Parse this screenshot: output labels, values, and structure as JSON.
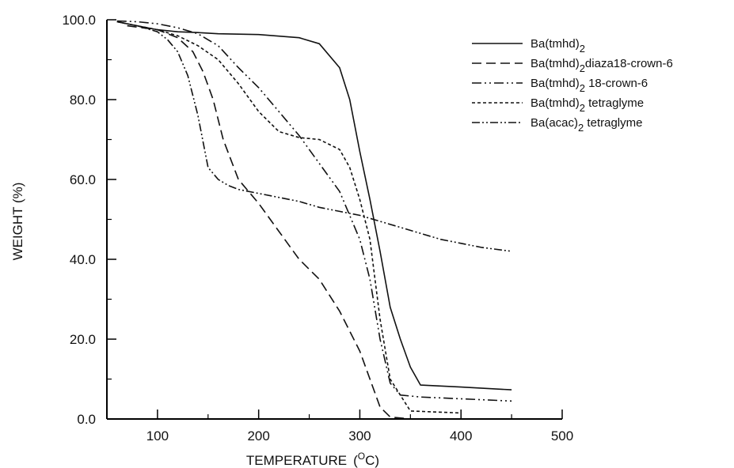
{
  "chart_data": {
    "type": "line",
    "xlabel": "TEMPERATURE",
    "xlabel_unit_open": "(",
    "xlabel_unit_sup": "O",
    "xlabel_unit_rest": "C)",
    "ylabel": "WEIGHT  (%)",
    "xlim": [
      50,
      500
    ],
    "ylim": [
      0,
      100
    ],
    "xticks": [
      100,
      200,
      300,
      400,
      500
    ],
    "xtick_labels": [
      "100",
      "200",
      "300",
      "400",
      "500"
    ],
    "yticks": [
      0,
      20,
      40,
      60,
      80,
      100
    ],
    "ytick_labels": [
      "0.0",
      "20.0",
      "40.0",
      "60.0",
      "80.0",
      "100.0"
    ],
    "grid": false,
    "legend_position": "top-right",
    "series": [
      {
        "name": "Ba(tmhd)2",
        "legend_base": "Ba(tmhd)",
        "legend_sub": "2",
        "legend_rest": "",
        "dash": "",
        "x": [
          60,
          80,
          100,
          120,
          140,
          160,
          200,
          240,
          260,
          280,
          290,
          300,
          310,
          320,
          330,
          340,
          350,
          360,
          400,
          450
        ],
        "y": [
          99.5,
          98.5,
          97.5,
          97,
          96.8,
          96.5,
          96.3,
          95.5,
          94,
          88,
          80,
          67,
          55,
          42,
          28,
          20,
          13,
          8.5,
          8,
          7.3
        ]
      },
      {
        "name": "Ba(tmhd)2diaza18-crown-6",
        "legend_base": "Ba(tmhd)",
        "legend_sub": "2",
        "legend_rest": "diaza18-crown-6",
        "dash": "12,6",
        "x": [
          70,
          100,
          120,
          135,
          145,
          155,
          165,
          180,
          200,
          220,
          240,
          260,
          280,
          300,
          310,
          320,
          330,
          350
        ],
        "y": [
          98.5,
          97.5,
          95.5,
          92,
          87,
          80,
          70,
          60,
          54,
          47,
          40,
          35,
          27,
          17,
          10,
          3,
          0.5,
          0
        ]
      },
      {
        "name": "Ba(tmhd)2 18-crown-6",
        "legend_base": "Ba(tmhd)",
        "legend_sub": "2",
        "legend_rest": " 18-crown-6",
        "dash": "12,4,2,4,2,4",
        "x": [
          60,
          80,
          100,
          120,
          140,
          150,
          160,
          180,
          200,
          220,
          240,
          260,
          280,
          300,
          310,
          320,
          330,
          340,
          360,
          450
        ],
        "y": [
          99.7,
          99.5,
          99,
          98,
          96.5,
          95,
          93.5,
          88,
          83,
          77,
          71,
          64,
          57,
          45,
          35,
          20,
          9,
          6,
          5.5,
          4.5
        ]
      },
      {
        "name": "Ba(tmhd)2 tetraglyme",
        "legend_base": "Ba(tmhd)",
        "legend_sub": "2",
        "legend_rest": " tetraglyme",
        "dash": "4,3",
        "x": [
          60,
          80,
          100,
          120,
          140,
          160,
          180,
          200,
          220,
          240,
          260,
          280,
          290,
          300,
          310,
          320,
          330,
          350,
          400
        ],
        "y": [
          99.5,
          98.5,
          97.5,
          96,
          93.5,
          90,
          84,
          77,
          72,
          70.5,
          70,
          67.5,
          63,
          55,
          45,
          25,
          10,
          2,
          1.5
        ]
      },
      {
        "name": "Ba(acac)2 tetraglyme",
        "legend_base": "Ba(acac)",
        "legend_sub": "2",
        "legend_rest": " tetraglyme",
        "dash": "10,3,2,3,2,3",
        "x": [
          60,
          80,
          100,
          110,
          120,
          130,
          140,
          150,
          160,
          170,
          180,
          200,
          220,
          240,
          260,
          280,
          300,
          320,
          340,
          360,
          380,
          400,
          420,
          450
        ],
        "y": [
          99.5,
          98.5,
          97,
          95,
          92,
          86,
          76,
          63,
          60,
          58.5,
          57.5,
          56.5,
          55.5,
          54.5,
          53,
          52,
          51,
          49.5,
          48,
          46.5,
          45,
          44,
          43,
          42
        ]
      }
    ]
  }
}
